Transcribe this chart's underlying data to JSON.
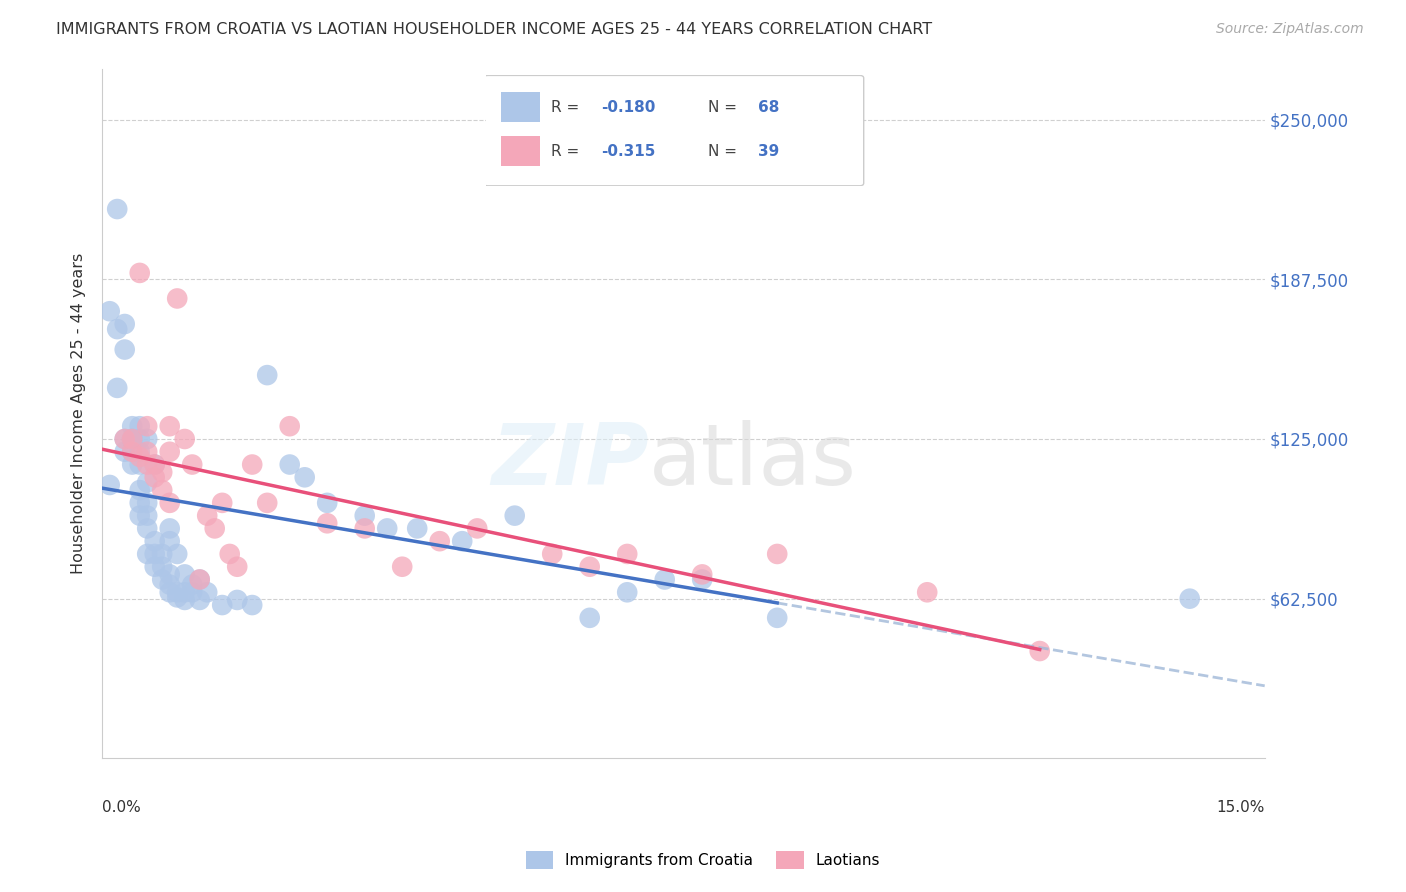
{
  "title": "IMMIGRANTS FROM CROATIA VS LAOTIAN HOUSEHOLDER INCOME AGES 25 - 44 YEARS CORRELATION CHART",
  "source": "Source: ZipAtlas.com",
  "ylabel": "Householder Income Ages 25 - 44 years",
  "ytick_values": [
    62500,
    125000,
    187500,
    250000
  ],
  "ytick_labels": [
    "$62,500",
    "$125,000",
    "$187,500",
    "$250,000"
  ],
  "ylim": [
    0,
    270000
  ],
  "xlim": [
    0.0,
    0.155
  ],
  "color_blue": "#adc6e8",
  "color_pink": "#f4a7b9",
  "line_blue": "#4472c4",
  "line_pink": "#e8507a",
  "dashed_blue": "#a0b8d8",
  "r1": "-0.180",
  "n1": "68",
  "r2": "-0.315",
  "n2": "39",
  "footer_label1": "Immigrants from Croatia",
  "footer_label2": "Laotians",
  "blue_x": [
    0.001,
    0.001,
    0.002,
    0.002,
    0.002,
    0.003,
    0.003,
    0.003,
    0.003,
    0.004,
    0.004,
    0.004,
    0.004,
    0.004,
    0.005,
    0.005,
    0.005,
    0.005,
    0.005,
    0.005,
    0.005,
    0.006,
    0.006,
    0.006,
    0.006,
    0.006,
    0.006,
    0.007,
    0.007,
    0.007,
    0.007,
    0.008,
    0.008,
    0.008,
    0.009,
    0.009,
    0.009,
    0.009,
    0.009,
    0.01,
    0.01,
    0.01,
    0.011,
    0.011,
    0.011,
    0.012,
    0.012,
    0.013,
    0.013,
    0.014,
    0.016,
    0.018,
    0.02,
    0.022,
    0.025,
    0.027,
    0.03,
    0.035,
    0.038,
    0.042,
    0.048,
    0.055,
    0.065,
    0.07,
    0.075,
    0.08,
    0.09,
    0.145
  ],
  "blue_y": [
    107000,
    175000,
    168000,
    215000,
    145000,
    160000,
    170000,
    125000,
    120000,
    115000,
    120000,
    125000,
    125000,
    130000,
    95000,
    100000,
    105000,
    115000,
    120000,
    125000,
    130000,
    80000,
    90000,
    95000,
    100000,
    108000,
    125000,
    75000,
    80000,
    85000,
    115000,
    70000,
    75000,
    80000,
    65000,
    68000,
    72000,
    85000,
    90000,
    63000,
    65000,
    80000,
    62000,
    65000,
    72000,
    65000,
    68000,
    62000,
    70000,
    65000,
    60000,
    62000,
    60000,
    150000,
    115000,
    110000,
    100000,
    95000,
    90000,
    90000,
    85000,
    95000,
    55000,
    65000,
    70000,
    70000,
    55000,
    62500
  ],
  "pink_x": [
    0.003,
    0.004,
    0.004,
    0.005,
    0.005,
    0.006,
    0.006,
    0.006,
    0.007,
    0.007,
    0.008,
    0.008,
    0.009,
    0.009,
    0.009,
    0.01,
    0.011,
    0.012,
    0.013,
    0.014,
    0.015,
    0.016,
    0.017,
    0.018,
    0.02,
    0.022,
    0.025,
    0.03,
    0.035,
    0.04,
    0.045,
    0.05,
    0.06,
    0.065,
    0.07,
    0.08,
    0.09,
    0.11,
    0.125
  ],
  "pink_y": [
    125000,
    120000,
    125000,
    118000,
    190000,
    115000,
    120000,
    130000,
    110000,
    115000,
    105000,
    112000,
    100000,
    130000,
    120000,
    180000,
    125000,
    115000,
    70000,
    95000,
    90000,
    100000,
    80000,
    75000,
    115000,
    100000,
    130000,
    92000,
    90000,
    75000,
    85000,
    90000,
    80000,
    75000,
    80000,
    72000,
    80000,
    65000,
    42000
  ]
}
